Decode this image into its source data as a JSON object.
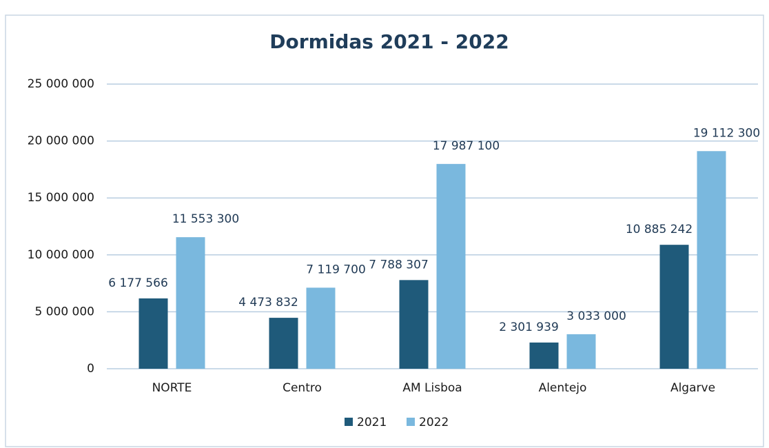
{
  "chart_data": {
    "type": "bar",
    "title": "Dormidas 2021 - 2022",
    "categories": [
      "NORTE",
      "Centro",
      "AM Lisboa",
      "Alentejo",
      "Algarve"
    ],
    "series": [
      {
        "name": "2021",
        "color": "#1f5a7a",
        "values": [
          6177566,
          4473832,
          7788307,
          2301939,
          10885242
        ],
        "value_labels": [
          "6 177 566",
          "4 473 832",
          "7 788 307",
          "2 301 939",
          "10 885 242"
        ]
      },
      {
        "name": "2022",
        "color": "#7ab8de",
        "values": [
          11553300,
          7119700,
          17987100,
          3033000,
          19112300
        ],
        "value_labels": [
          "11 553 300",
          "7 119 700",
          "17 987 100",
          "3 033 000",
          "19 112 300"
        ]
      }
    ],
    "ylim": [
      0,
      25000000
    ],
    "yticks": [
      0,
      {
        "value": 5000000,
        "label": "5 000 000"
      },
      {
        "value": 10000000,
        "label": "10 000 000"
      },
      {
        "value": 15000000,
        "label": "15 000 000"
      },
      {
        "value": 20000000,
        "label": "20 000 000"
      },
      {
        "value": 25000000,
        "label": "25 000 000"
      }
    ],
    "grid": true,
    "legend": "bottom"
  }
}
